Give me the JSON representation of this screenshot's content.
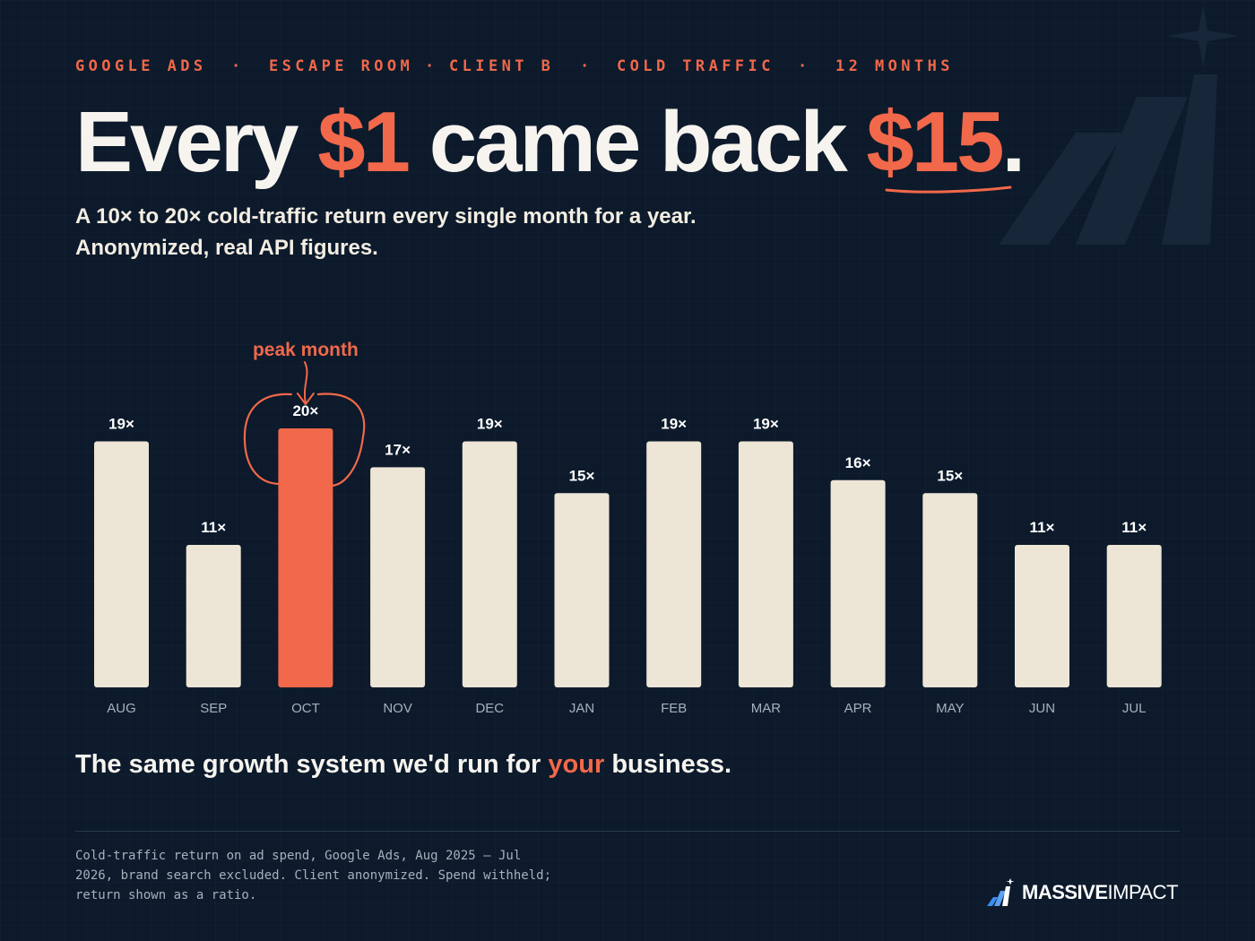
{
  "eyebrow": {
    "items": [
      "GOOGLE ADS",
      "·",
      "ESCAPE ROOM",
      "·",
      "CLIENT B",
      "·",
      "COLD TRAFFIC",
      "·",
      "12 MONTHS"
    ]
  },
  "headline": {
    "part1": "Every",
    "accent1": "$1",
    "part2": "came back",
    "accent2": "$15",
    "part3": "."
  },
  "subtitle": {
    "line1": "A 10× to 20× cold-traffic return every single month for a year.",
    "line2": "Anonymized, real API figures."
  },
  "chart_data": {
    "type": "bar",
    "categories": [
      "AUG",
      "SEP",
      "OCT",
      "NOV",
      "DEC",
      "JAN",
      "FEB",
      "MAR",
      "APR",
      "MAY",
      "JUN",
      "JUL"
    ],
    "values": [
      19,
      11,
      20,
      17,
      19,
      15,
      19,
      19,
      16,
      15,
      11,
      11
    ],
    "value_labels": [
      "19×",
      "11×",
      "20×",
      "17×",
      "19×",
      "15×",
      "19×",
      "19×",
      "16×",
      "15×",
      "11×",
      "11×"
    ],
    "ylim": [
      0,
      20
    ],
    "grid": false,
    "highlight_index": 2,
    "annotation": {
      "text": "peak month",
      "category": "OCT"
    },
    "colors": {
      "bar": "#ede5d6",
      "highlight": "#f2684a",
      "annotation": "#f2684a"
    }
  },
  "tagline": {
    "before": "The same growth system we'd run for",
    "highlight": "your",
    "after": "business."
  },
  "footnote": {
    "line1": "Cold-traffic return on ad spend, Google Ads, Aug 2025 – Jul",
    "line2": "2026, brand search excluded. Client anonymized. Spend withheld;",
    "line3": "return shown as a ratio."
  },
  "brand": {
    "name_bold": "MASSIVE",
    "name_light": "IMPACT",
    "icon": "bar-chart-logo-icon"
  },
  "colors": {
    "background": "#0c1a2b",
    "accent": "#f2684a",
    "text": "#f7f4ef",
    "muted": "#a7b0bd",
    "bar": "#ede5d6"
  }
}
